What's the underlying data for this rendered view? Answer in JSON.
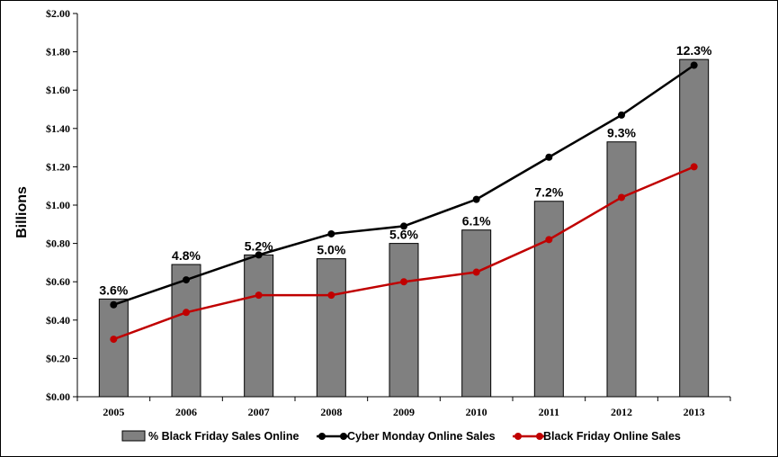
{
  "chart_data": {
    "type": "bar",
    "categories": [
      "2005",
      "2006",
      "2007",
      "2008",
      "2009",
      "2010",
      "2011",
      "2012",
      "2013"
    ],
    "ylabel": "Billions",
    "ylim": [
      0,
      2.0
    ],
    "yticks": [
      0,
      0.2,
      0.4,
      0.6,
      0.8,
      1.0,
      1.2,
      1.4,
      1.6,
      1.8,
      2.0
    ],
    "ytick_labels": [
      "$0.00",
      "$0.20",
      "$0.40",
      "$0.60",
      "$0.80",
      "$1.00",
      "$1.20",
      "$1.40",
      "$1.60",
      "$1.80",
      "$2.00"
    ],
    "grid": false,
    "legend_position": "bottom",
    "bar_series": {
      "name": "% Black Friday Sales Online",
      "color": "#808080",
      "values": [
        0.51,
        0.69,
        0.74,
        0.72,
        0.8,
        0.87,
        1.02,
        1.33,
        1.76
      ],
      "labels": [
        "3.6%",
        "4.8%",
        "5.2%",
        "5.0%",
        "5.6%",
        "6.1%",
        "7.2%",
        "9.3%",
        "12.3%"
      ]
    },
    "series": [
      {
        "name": "Cyber Monday Online Sales",
        "type": "line",
        "color": "#000000",
        "values": [
          0.48,
          0.61,
          0.74,
          0.85,
          0.89,
          1.03,
          1.25,
          1.47,
          1.73
        ]
      },
      {
        "name": "Black Friday Online Sales",
        "type": "line",
        "color": "#c00000",
        "values": [
          0.3,
          0.44,
          0.53,
          0.53,
          0.6,
          0.65,
          0.82,
          1.04,
          1.2
        ]
      }
    ]
  }
}
